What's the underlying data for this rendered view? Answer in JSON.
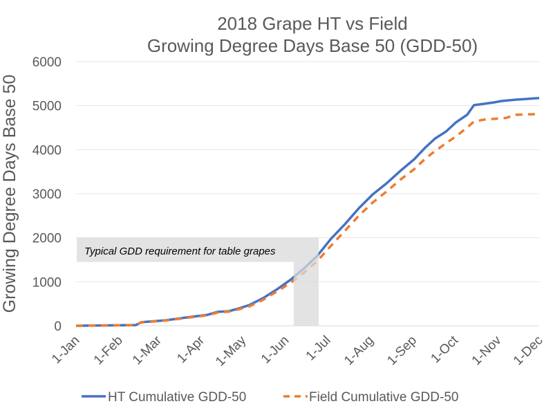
{
  "chart_data": {
    "type": "line",
    "title": [
      "2018 Grape HT vs Field",
      "Growing Degree Days Base 50 (GDD-50)"
    ],
    "xlabel": "",
    "ylabel": "Growing Degree Days Base 50",
    "ylim": [
      0,
      6000
    ],
    "yticks": [
      0,
      1000,
      2000,
      3000,
      4000,
      5000,
      6000
    ],
    "xlim_days": [
      0,
      334
    ],
    "xticks": [
      {
        "day": 0,
        "label": "1-Jan"
      },
      {
        "day": 31,
        "label": "1-Feb"
      },
      {
        "day": 59,
        "label": "1-Mar"
      },
      {
        "day": 90,
        "label": "1-Apr"
      },
      {
        "day": 120,
        "label": "1-May"
      },
      {
        "day": 151,
        "label": "1-Jun"
      },
      {
        "day": 181,
        "label": "1-Jul"
      },
      {
        "day": 212,
        "label": "1-Aug"
      },
      {
        "day": 243,
        "label": "1-Sep"
      },
      {
        "day": 273,
        "label": "1-Oct"
      },
      {
        "day": 304,
        "label": "1-Nov"
      },
      {
        "day": 334,
        "label": "1-Dec"
      }
    ],
    "grid": true,
    "legend_position": "bottom",
    "series": [
      {
        "name": "HT Cumulative GDD-50",
        "color": "#4472C4",
        "style": "solid",
        "x_days": [
          0,
          43,
          47,
          65,
          80,
          95,
          102,
          110,
          117,
          125,
          135,
          145,
          155,
          165,
          174,
          184,
          194,
          204,
          214,
          224,
          234,
          244,
          252,
          259,
          267,
          274,
          282,
          287,
          294,
          302,
          307,
          317,
          334
        ],
        "values": [
          0,
          15,
          80,
          125,
          190,
          250,
          315,
          330,
          390,
          470,
          630,
          830,
          1050,
          1320,
          1590,
          1980,
          2310,
          2670,
          2985,
          3235,
          3520,
          3785,
          4050,
          4255,
          4415,
          4620,
          4790,
          5010,
          5040,
          5075,
          5105,
          5135,
          5170
        ]
      },
      {
        "name": "Field Cumulative GDD-50",
        "color": "#ED7D31",
        "style": "dashed",
        "x_days": [
          0,
          43,
          47,
          65,
          80,
          95,
          102,
          110,
          117,
          125,
          135,
          145,
          155,
          165,
          174,
          184,
          194,
          204,
          214,
          224,
          234,
          244,
          252,
          259,
          267,
          274,
          282,
          287,
          294,
          302,
          310,
          317,
          334
        ],
        "values": [
          0,
          15,
          75,
          120,
          180,
          240,
          300,
          320,
          370,
          440,
          590,
          780,
          980,
          1220,
          1470,
          1820,
          2160,
          2500,
          2800,
          3050,
          3320,
          3560,
          3800,
          3970,
          4150,
          4300,
          4500,
          4640,
          4680,
          4700,
          4720,
          4790,
          4810
        ]
      }
    ],
    "annotations": [
      {
        "text": "Typical GDD requirement for table grapes",
        "gdd_range": [
          1450,
          2000
        ],
        "day_range": [
          157,
          175
        ],
        "fill": "#D9D9D9"
      }
    ]
  }
}
